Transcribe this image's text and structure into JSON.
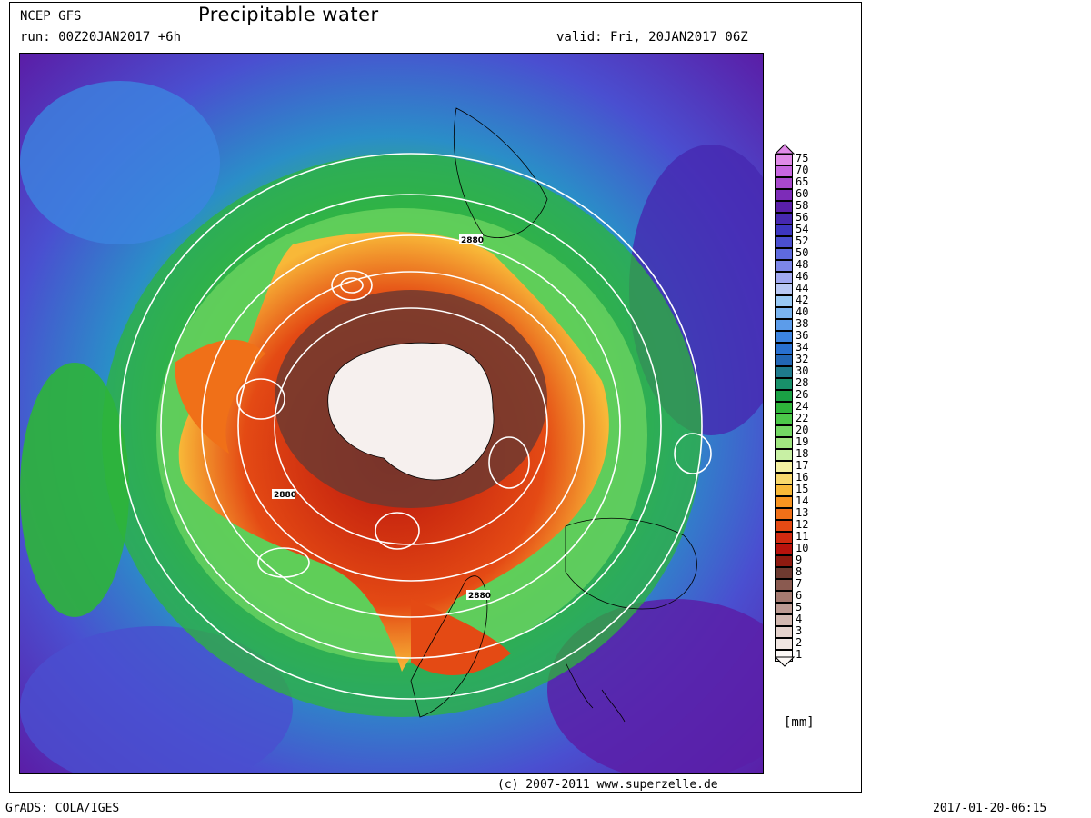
{
  "header": {
    "model": "NCEP GFS",
    "title": "Precipitable water",
    "run": "run: 00Z20JAN2017 +6h",
    "valid": "valid: Fri, 20JAN2017 06Z"
  },
  "map": {
    "contour_labels": [
      "2880",
      "2880",
      "2880"
    ]
  },
  "legend": {
    "unit": "[mm]",
    "levels": [
      {
        "label": "75",
        "color": "#e08ae8"
      },
      {
        "label": "70",
        "color": "#c766e0"
      },
      {
        "label": "65",
        "color": "#a848cc"
      },
      {
        "label": "60",
        "color": "#7d2cb8"
      },
      {
        "label": "58",
        "color": "#5a1fa8"
      },
      {
        "label": "56",
        "color": "#4628b0"
      },
      {
        "label": "54",
        "color": "#3d36c0"
      },
      {
        "label": "52",
        "color": "#4a4fd0"
      },
      {
        "label": "50",
        "color": "#5e6ade"
      },
      {
        "label": "48",
        "color": "#7c86e8"
      },
      {
        "label": "46",
        "color": "#a0a8f0"
      },
      {
        "label": "44",
        "color": "#b8c8f4"
      },
      {
        "label": "42",
        "color": "#98c8f4"
      },
      {
        "label": "40",
        "color": "#7ab4f0"
      },
      {
        "label": "38",
        "color": "#5c9cea"
      },
      {
        "label": "36",
        "color": "#3c84e0"
      },
      {
        "label": "34",
        "color": "#2870d0"
      },
      {
        "label": "32",
        "color": "#2266b4"
      },
      {
        "label": "30",
        "color": "#1e7a8c"
      },
      {
        "label": "28",
        "color": "#18906a"
      },
      {
        "label": "26",
        "color": "#1aa044"
      },
      {
        "label": "24",
        "color": "#2eb43a"
      },
      {
        "label": "22",
        "color": "#4cc84a"
      },
      {
        "label": "20",
        "color": "#74d864"
      },
      {
        "label": "19",
        "color": "#a0e680"
      },
      {
        "label": "18",
        "color": "#c8f0a4"
      },
      {
        "label": "17",
        "color": "#f4f0a0"
      },
      {
        "label": "16",
        "color": "#f8d86c"
      },
      {
        "label": "15",
        "color": "#f8b838"
      },
      {
        "label": "14",
        "color": "#f89420"
      },
      {
        "label": "13",
        "color": "#f07018"
      },
      {
        "label": "12",
        "color": "#e44a14"
      },
      {
        "label": "11",
        "color": "#d02a10"
      },
      {
        "label": "10",
        "color": "#b8120c"
      },
      {
        "label": "9",
        "color": "#8e1a10"
      },
      {
        "label": "8",
        "color": "#6e3a30"
      },
      {
        "label": "7",
        "color": "#8a5a50"
      },
      {
        "label": "6",
        "color": "#a47a70"
      },
      {
        "label": "5",
        "color": "#bc9a92"
      },
      {
        "label": "4",
        "color": "#d2b8b0"
      },
      {
        "label": "3",
        "color": "#e4d2cc"
      },
      {
        "label": "2",
        "color": "#f0e6e2"
      },
      {
        "label": "1",
        "color": "#fcf8f6"
      }
    ]
  },
  "footer": {
    "copyright": "(c) 2007-2011 www.superzelle.de",
    "grads": "GrADS: COLA/IGES",
    "timestamp": "2017-01-20-06:15"
  }
}
